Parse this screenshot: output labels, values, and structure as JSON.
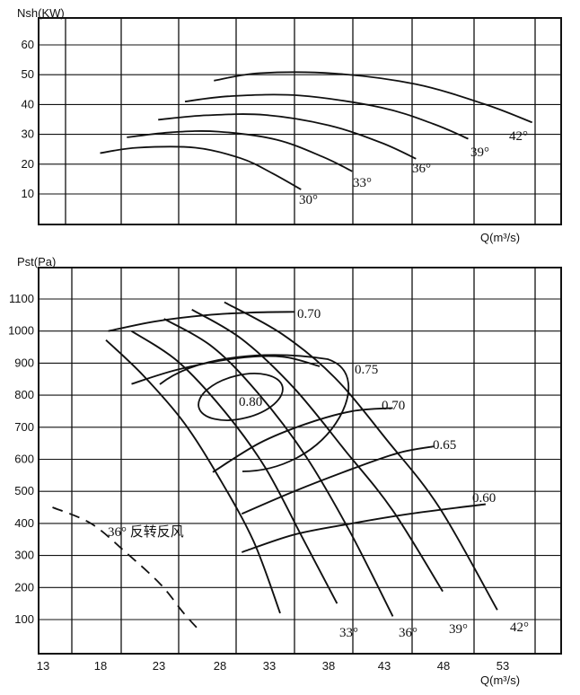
{
  "chart_data": [
    {
      "type": "line",
      "ylabel": "Nsh(KW)",
      "xlabel": "Q(m³/s)",
      "ylim": [
        0,
        60
      ],
      "yticks": [
        10,
        20,
        30,
        40,
        50,
        60
      ],
      "grid": true,
      "series": [
        {
          "name": "30°",
          "points": [
            [
              18.3,
              23.7
            ],
            [
              21.5,
              25.5
            ],
            [
              26.5,
              25.5
            ],
            [
              30.4,
              22.0
            ],
            [
              33.1,
              17.0
            ],
            [
              35.6,
              11.5
            ]
          ]
        },
        {
          "name": "33°",
          "points": [
            [
              20.6,
              29.0
            ],
            [
              24.5,
              30.7
            ],
            [
              28.5,
              30.9
            ],
            [
              33.5,
              28.2
            ],
            [
              37.5,
              22.4
            ],
            [
              40.0,
              17.6
            ]
          ]
        },
        {
          "name": "36°",
          "points": [
            [
              23.3,
              34.9
            ],
            [
              27.5,
              36.4
            ],
            [
              32.5,
              36.5
            ],
            [
              38.0,
              33.0
            ],
            [
              42.5,
              27.2
            ],
            [
              45.5,
              21.8
            ]
          ]
        },
        {
          "name": "39°",
          "points": [
            [
              25.6,
              41.0
            ],
            [
              29.5,
              42.8
            ],
            [
              35.5,
              43.0
            ],
            [
              42.5,
              39.0
            ],
            [
              47.0,
              33.5
            ],
            [
              50.0,
              28.5
            ]
          ]
        },
        {
          "name": "42°",
          "points": [
            [
              28.1,
              48.0
            ],
            [
              32.0,
              50.5
            ],
            [
              38.5,
              50.4
            ],
            [
              45.5,
              46.8
            ],
            [
              51.5,
              40.0
            ],
            [
              55.5,
              34.0
            ]
          ]
        }
      ],
      "curve_labels": [
        "30°",
        "33°",
        "36°",
        "39°",
        "42°"
      ]
    },
    {
      "type": "line",
      "ylabel": "Pst(Pa)",
      "xlabel": "Q(m³/s)",
      "xlim": [
        13,
        58
      ],
      "ylim": [
        0,
        1150
      ],
      "xticks": [
        13,
        18,
        23,
        28,
        33,
        38,
        43,
        48,
        53
      ],
      "yticks": [
        100,
        200,
        300,
        400,
        500,
        600,
        700,
        800,
        900,
        1000,
        1100
      ],
      "grid": true,
      "pressure_curves": [
        {
          "name": "33°",
          "points": [
            [
              18.8,
              972
            ],
            [
              22.0,
              862
            ],
            [
              25.5,
              715
            ],
            [
              28.5,
              545
            ],
            [
              31.5,
              345
            ],
            [
              33.8,
              120
            ]
          ]
        },
        {
          "name": "36°",
          "points": [
            [
              21.0,
              1000
            ],
            [
              25.0,
              905
            ],
            [
              29.0,
              750
            ],
            [
              32.5,
              575
            ],
            [
              35.8,
              350
            ],
            [
              38.7,
              150
            ]
          ]
        },
        {
          "name": "39°",
          "points": [
            [
              23.8,
              1038
            ],
            [
              28.0,
              950
            ],
            [
              32.0,
              802
            ],
            [
              36.0,
              610
            ],
            [
              39.8,
              375
            ],
            [
              43.5,
              110
            ]
          ]
        },
        {
          "name": "42°",
          "points": [
            [
              26.2,
              1067
            ],
            [
              30.5,
              975
            ],
            [
              35.0,
              822
            ],
            [
              39.5,
              623
            ],
            [
              43.5,
              440
            ],
            [
              47.8,
              188
            ]
          ]
        },
        {
          "name": "",
          "points": [
            [
              29.0,
              1090
            ],
            [
              34.0,
              990
            ],
            [
              38.5,
              855
            ],
            [
              43.0,
              660
            ],
            [
              47.5,
              450
            ],
            [
              52.5,
              130
            ]
          ]
        }
      ],
      "efficiency_curves": [
        {
          "label": "0.70",
          "points": [
            [
              19.0,
              1000
            ],
            [
              23.0,
              1030
            ],
            [
              27.5,
              1050
            ],
            [
              31.5,
              1058
            ],
            [
              35.0,
              1060
            ]
          ]
        },
        {
          "label": "0.75",
          "points": [
            [
              21.0,
              835
            ],
            [
              25.0,
              880
            ],
            [
              30.0,
              915
            ],
            [
              34.0,
              920
            ],
            [
              37.2,
              890
            ]
          ]
        },
        {
          "label": "0.70",
          "points": [
            [
              28.0,
              560
            ],
            [
              32.0,
              650
            ],
            [
              36.0,
              710
            ],
            [
              40.0,
              750
            ],
            [
              43.5,
              760
            ]
          ]
        },
        {
          "label": "0.65",
          "points": [
            [
              30.5,
              430
            ],
            [
              35.0,
              500
            ],
            [
              40.0,
              570
            ],
            [
              44.0,
              620
            ],
            [
              47.0,
              640
            ]
          ]
        },
        {
          "label": "0.60",
          "points": [
            [
              30.5,
              310
            ],
            [
              35.0,
              365
            ],
            [
              40.0,
              400
            ],
            [
              45.0,
              430
            ],
            [
              51.5,
              460
            ]
          ]
        }
      ],
      "efficiency_labels": [
        "0.70",
        "0.75",
        "0.70",
        "0.65",
        "0.60",
        "0.80"
      ],
      "reverse_curve": {
        "label": "36°  反转反风",
        "points": [
          [
            14.2,
            450
          ],
          [
            17.5,
            400
          ],
          [
            20.5,
            310
          ],
          [
            23.5,
            210
          ],
          [
            25.5,
            120
          ],
          [
            27.0,
            60
          ]
        ]
      },
      "pressure_curve_labels": [
        "33°",
        "36°",
        "39°",
        "42°"
      ]
    }
  ]
}
